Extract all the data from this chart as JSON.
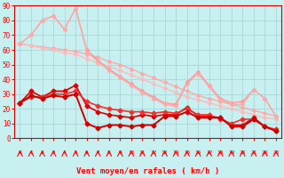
{
  "xlabel": "Vent moyen/en rafales ( km/h )",
  "bg_color": "#c8f0f0",
  "grid_color": "#a8d8d8",
  "xlim": [
    -0.5,
    23.5
  ],
  "ylim": [
    0,
    90
  ],
  "yticks": [
    0,
    10,
    20,
    30,
    40,
    50,
    60,
    70,
    80,
    90
  ],
  "xticks": [
    0,
    1,
    2,
    3,
    4,
    5,
    6,
    7,
    8,
    9,
    10,
    11,
    12,
    13,
    14,
    15,
    16,
    17,
    18,
    19,
    20,
    21,
    22,
    23
  ],
  "series": [
    {
      "x": [
        0,
        1,
        2,
        3,
        4,
        5,
        6,
        7,
        8,
        9,
        10,
        11,
        12,
        13,
        14,
        15,
        16,
        17,
        18,
        19,
        20,
        21,
        22,
        23
      ],
      "y": [
        64,
        63,
        62,
        61,
        60,
        59,
        57,
        55,
        52,
        50,
        47,
        44,
        41,
        38,
        35,
        32,
        29,
        27,
        25,
        23,
        21,
        19,
        17,
        15
      ],
      "color": "#ffaaaa",
      "lw": 1.0,
      "marker": "D",
      "ms": 2.0
    },
    {
      "x": [
        0,
        1,
        2,
        3,
        4,
        5,
        6,
        7,
        8,
        9,
        10,
        11,
        12,
        13,
        14,
        15,
        16,
        17,
        18,
        19,
        20,
        21,
        22,
        23
      ],
      "y": [
        64,
        63,
        61,
        60,
        58,
        57,
        54,
        51,
        49,
        46,
        43,
        40,
        37,
        34,
        31,
        28,
        26,
        24,
        22,
        20,
        18,
        16,
        14,
        13
      ],
      "color": "#ffbbbb",
      "lw": 1.0,
      "marker": "D",
      "ms": 2.0
    },
    {
      "x": [
        0,
        1,
        2,
        3,
        4,
        5,
        6,
        7,
        8,
        9,
        10,
        11,
        12,
        13,
        14,
        15,
        16,
        17,
        18,
        19,
        20,
        21,
        22,
        23
      ],
      "y": [
        64,
        70,
        80,
        83,
        74,
        88,
        60,
        53,
        47,
        42,
        37,
        32,
        28,
        24,
        23,
        38,
        45,
        36,
        27,
        24,
        25,
        33,
        27,
        15
      ],
      "color": "#ff9999",
      "lw": 1.0,
      "marker": "D",
      "ms": 2.0
    },
    {
      "x": [
        0,
        1,
        2,
        3,
        4,
        5,
        6,
        7,
        8,
        9,
        10,
        11,
        12,
        13,
        14,
        15,
        16,
        17,
        18,
        19,
        20,
        21,
        22,
        23
      ],
      "y": [
        64,
        70,
        80,
        83,
        74,
        88,
        59,
        52,
        46,
        41,
        36,
        31,
        27,
        23,
        22,
        37,
        44,
        35,
        26,
        23,
        23,
        33,
        27,
        15
      ],
      "color": "#ffaaaa",
      "lw": 1.0,
      "marker": "D",
      "ms": 2.0
    },
    {
      "x": [
        0,
        1,
        2,
        3,
        4,
        5,
        6,
        7,
        8,
        9,
        10,
        11,
        12,
        13,
        14,
        15,
        16,
        17,
        18,
        19,
        20,
        21,
        22,
        23
      ],
      "y": [
        24,
        32,
        28,
        32,
        32,
        36,
        22,
        18,
        16,
        15,
        14,
        16,
        15,
        16,
        16,
        21,
        15,
        15,
        14,
        9,
        9,
        14,
        8,
        5
      ],
      "color": "#dd0000",
      "lw": 1.2,
      "marker": "D",
      "ms": 2.5
    },
    {
      "x": [
        0,
        1,
        2,
        3,
        4,
        5,
        6,
        7,
        8,
        9,
        10,
        11,
        12,
        13,
        14,
        15,
        16,
        17,
        18,
        19,
        20,
        21,
        22,
        23
      ],
      "y": [
        24,
        28,
        28,
        30,
        30,
        32,
        25,
        22,
        20,
        19,
        18,
        18,
        17,
        18,
        17,
        20,
        16,
        16,
        13,
        10,
        13,
        13,
        8,
        6
      ],
      "color": "#ee3333",
      "lw": 1.2,
      "marker": "D",
      "ms": 2.5
    },
    {
      "x": [
        0,
        1,
        2,
        3,
        4,
        5,
        6,
        7,
        8,
        9,
        10,
        11,
        12,
        13,
        14,
        15,
        16,
        17,
        18,
        19,
        20,
        21,
        22,
        23
      ],
      "y": [
        24,
        29,
        27,
        29,
        28,
        30,
        10,
        7,
        9,
        9,
        8,
        9,
        9,
        15,
        15,
        18,
        14,
        14,
        14,
        8,
        8,
        13,
        8,
        5
      ],
      "color": "#cc0000",
      "lw": 1.4,
      "marker": "D",
      "ms": 2.5
    }
  ]
}
